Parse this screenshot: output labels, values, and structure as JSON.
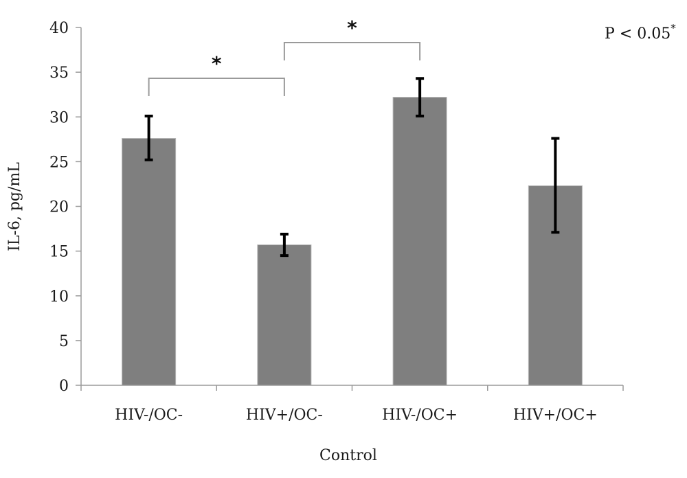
{
  "chart_data": {
    "type": "bar",
    "categories": [
      "HIV-/OC-",
      "HIV+/OC-",
      "HIV-/OC+",
      "HIV+/OC+"
    ],
    "values": [
      27.6,
      15.7,
      32.2,
      22.3
    ],
    "error_low": [
      25.2,
      14.5,
      30.1,
      17.1
    ],
    "error_high": [
      30.1,
      16.9,
      34.3,
      27.6
    ],
    "xlabel": "Control",
    "ylabel": "IL-6, pg/mL",
    "ylim": [
      0,
      40
    ],
    "yticks": [
      "0",
      "5",
      "10",
      "15",
      "20",
      "25",
      "30",
      "35",
      "40"
    ],
    "grid": false,
    "bar_color": "#7f7f7f",
    "error_color": "#000000",
    "annotation": {
      "text": "P < 0.05",
      "superscript": "*"
    },
    "significance": [
      {
        "from": 0,
        "to": 1,
        "label": "*"
      },
      {
        "from": 1,
        "to": 2,
        "label": "*"
      }
    ]
  }
}
